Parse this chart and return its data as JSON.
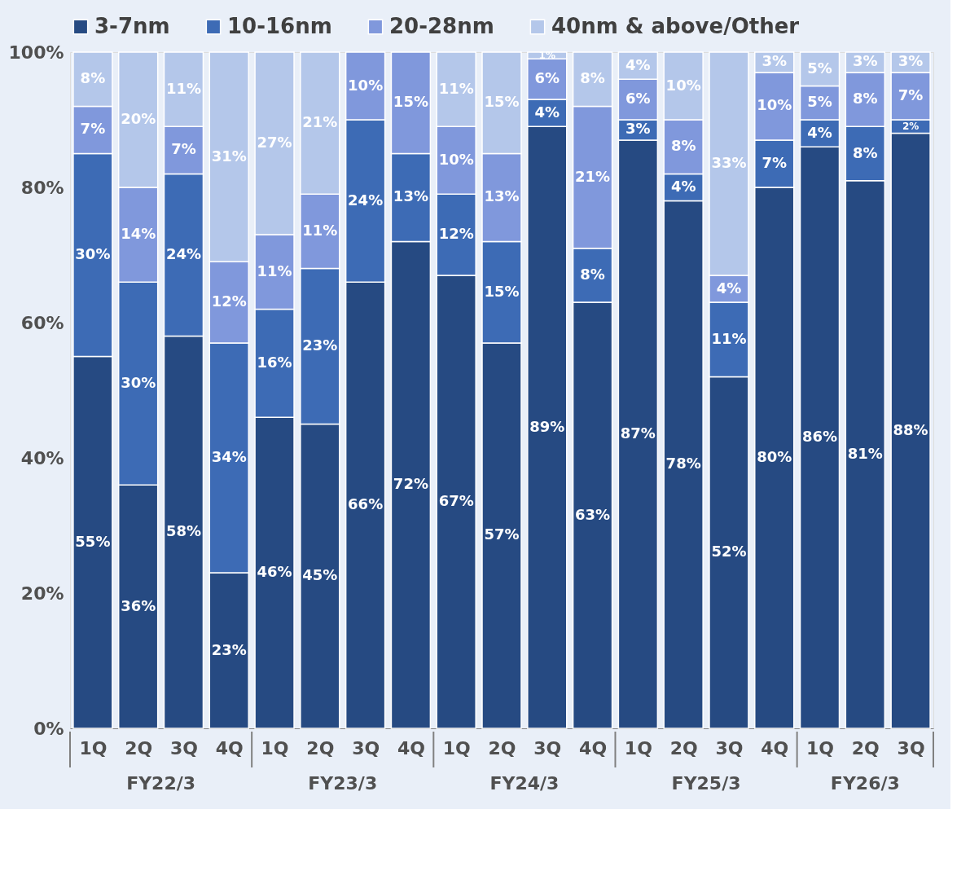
{
  "chart_data": {
    "type": "bar",
    "stacked": true,
    "legend": "top",
    "grid": false,
    "categories": [
      "1Q",
      "2Q",
      "3Q",
      "4Q",
      "1Q",
      "2Q",
      "3Q",
      "4Q",
      "1Q",
      "2Q",
      "3Q",
      "4Q",
      "1Q",
      "2Q",
      "3Q",
      "4Q",
      "1Q",
      "2Q",
      "3Q"
    ],
    "annotations": [
      "FY22/3",
      "FY23/3",
      "FY24/3",
      "FY25/3",
      "FY26/3"
    ],
    "ylim": [
      0,
      100
    ],
    "yticks": [
      {
        "value": 0,
        "label": "0%"
      },
      {
        "value": 20,
        "label": "20%"
      },
      {
        "value": 40,
        "label": "40%"
      },
      {
        "value": 60,
        "label": "60%"
      },
      {
        "value": 80,
        "label": "80%"
      },
      {
        "value": 100,
        "label": "100%"
      }
    ],
    "series": [
      {
        "name": "3-7nm",
        "color": "#264a82",
        "values": [
          55,
          36,
          58,
          23,
          46,
          45,
          66,
          72,
          67,
          57,
          89,
          63,
          87,
          78,
          52,
          80,
          86,
          81,
          88
        ],
        "value_labels": [
          "55%",
          "36%",
          "58%",
          "23%",
          "46%",
          "45%",
          "66%",
          "72%",
          "67%",
          "57%",
          "89%",
          "63%",
          "87%",
          "78%",
          "52%",
          "80%",
          "86%",
          "81%",
          "88%"
        ]
      },
      {
        "name": "10-16nm",
        "color": "#3d6bb5",
        "values": [
          30,
          30,
          24,
          34,
          16,
          23,
          24,
          13,
          12,
          15,
          4,
          8,
          3,
          4,
          11,
          7,
          4,
          8,
          2
        ],
        "value_labels": [
          "30%",
          "30%",
          "24%",
          "34%",
          "16%",
          "23%",
          "24%",
          "13%",
          "12%",
          "15%",
          "4%",
          "8%",
          "3%",
          "4%",
          "11%",
          "7%",
          "4%",
          "8%",
          "2%"
        ]
      },
      {
        "name": "20-28nm",
        "color": "#8098dc",
        "values": [
          7,
          14,
          7,
          12,
          11,
          11,
          10,
          15,
          10,
          13,
          6,
          21,
          6,
          8,
          4,
          10,
          5,
          8,
          7
        ],
        "value_labels": [
          "7%",
          "14%",
          "7%",
          "12%",
          "11%",
          "11%",
          "10%",
          "15%",
          "10%",
          "13%",
          "6%",
          "21%",
          "6%",
          "8%",
          "4%",
          "10%",
          "5%",
          "8%",
          "7%"
        ]
      },
      {
        "name": "40nm & above/Other",
        "color": "#b4c7ea",
        "values": [
          8,
          20,
          11,
          31,
          27,
          21,
          null,
          null,
          11,
          15,
          1,
          8,
          4,
          10,
          33,
          3,
          5,
          3,
          3
        ],
        "value_labels": [
          "8%",
          "20%",
          "11%",
          "31%",
          "27%",
          "21%",
          null,
          null,
          "11%",
          "15%",
          "1%",
          "8%",
          "4%",
          "10%",
          "33%",
          "3%",
          "5%",
          "3%",
          "3%"
        ]
      }
    ]
  }
}
